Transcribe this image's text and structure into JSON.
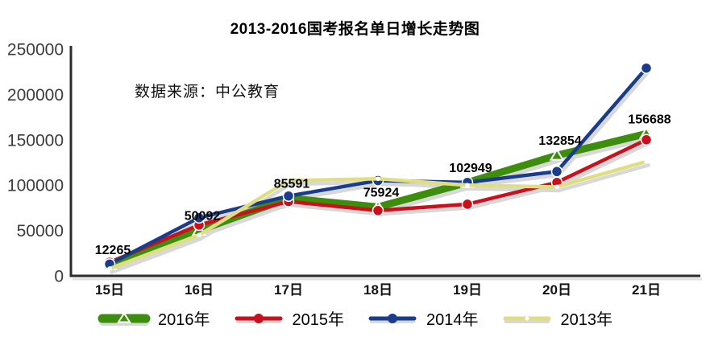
{
  "title": "2013-2016国考报名单日增长走势图",
  "source_note": "数据来源：中公教育",
  "chart_data": {
    "type": "line",
    "categories": [
      "15日",
      "16日",
      "17日",
      "18日",
      "19日",
      "20日",
      "21日"
    ],
    "series": [
      {
        "name": "2016年",
        "color": "#3E8E0E",
        "marker": "triangle",
        "line_width": 9,
        "values": [
          12265,
          50092,
          85591,
          75924,
          102949,
          132854,
          156688
        ]
      },
      {
        "name": "2015年",
        "color": "#C9101C",
        "marker": "circle",
        "line_width": 4.5,
        "values": [
          15000,
          56000,
          82000,
          72000,
          79000,
          103000,
          150000
        ]
      },
      {
        "name": "2014年",
        "color": "#1A3C8C",
        "marker": "circle",
        "line_width": 4.5,
        "values": [
          13000,
          64000,
          88000,
          105000,
          103000,
          115000,
          229000
        ]
      },
      {
        "name": "2013年",
        "color": "#DFDF82",
        "marker": "white-dot",
        "line_width": 4.5,
        "values": [
          8000,
          45000,
          105000,
          107000,
          100000,
          98000,
          126000
        ]
      }
    ],
    "labels_series": 0,
    "data_labels": [
      "12265",
      "50092",
      "85591",
      "75924",
      "102949",
      "132854",
      "156688"
    ],
    "xlabel": "",
    "ylabel": "",
    "ylim": [
      0,
      250000
    ],
    "yticks": [
      "0",
      "50000",
      "100000",
      "150000",
      "200000",
      "250000"
    ],
    "grid": false,
    "legend_position": "bottom",
    "axis_color": "#2B2B2B",
    "tick_text_color": "#3C3C3C",
    "label_text_color": "#000000",
    "shadow_color": "#D8D8D8"
  }
}
